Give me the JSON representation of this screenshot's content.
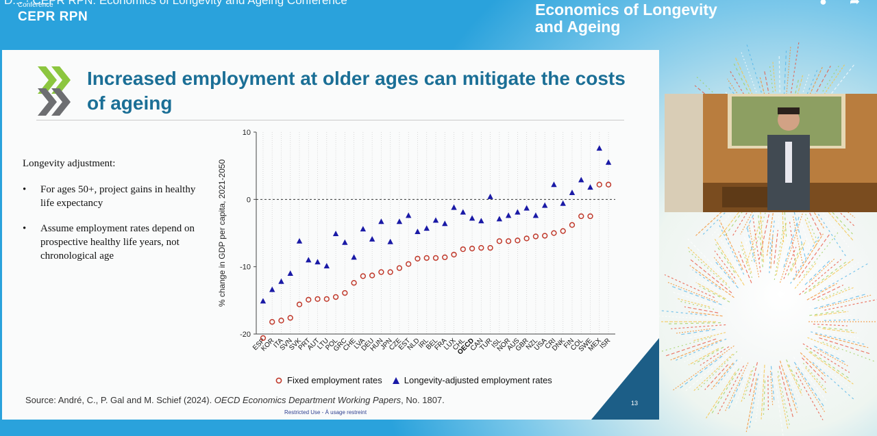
{
  "video": {
    "title": "D... · CEPR RPN: Economics of Longevity and Ageing Conference",
    "conference_small": "Conference",
    "brand": "CEPR RPN",
    "event_title_line1": "Economics of Longevity",
    "event_title_line2": "and Ageing"
  },
  "slide": {
    "title": "Increased employment at older ages can mitigate the costs of ageing",
    "notes_label": "Longevity adjustment:",
    "bullets": [
      "For ages 50+, project gains in healthy life expectancy",
      "Assume employment rates depend on prospective healthy life years, not chronological age"
    ],
    "source_prefix": "Source: André, C., P. Gal and M. Schief (2024). ",
    "source_italic": "OECD Economics Department Working Papers",
    "source_suffix": ", No. 1807.",
    "restricted": "Restricted Use - À usage restreint",
    "page_number": "13",
    "colors": {
      "title": "#1b6f96",
      "fixed": "#c0392b",
      "adjusted": "#1a1aa6",
      "corner": "#1c5e87"
    }
  },
  "chart_data": {
    "type": "scatter",
    "ylabel": "% change in GDP per capita, 2021-2050",
    "ylim": [
      -20,
      10
    ],
    "yticks": [
      10,
      0,
      -10,
      -20
    ],
    "zero_line": "dashed",
    "grid": "vertical dotted",
    "legend_position": "bottom",
    "categories": [
      "ESP",
      "KOR",
      "ITA",
      "SVN",
      "SVK",
      "PRT",
      "AUT",
      "LTU",
      "POL",
      "GRC",
      "CHE",
      "LVA",
      "DEU",
      "HUN",
      "JPN",
      "CZE",
      "EST",
      "NLD",
      "IRL",
      "BEL",
      "FRA",
      "LUX",
      "CHL",
      "OECD",
      "CAN",
      "TUR",
      "ISL",
      "NOR",
      "AUS",
      "GBR",
      "NZL",
      "USA",
      "CRI",
      "DNK",
      "FIN",
      "COL",
      "SWE",
      "MEX",
      "ISR"
    ],
    "series": [
      {
        "name": "Fixed employment rates",
        "marker": "circle-open",
        "values": [
          -20.6,
          -18.2,
          -18.0,
          -17.6,
          -15.6,
          -14.9,
          -14.8,
          -14.8,
          -14.5,
          -13.9,
          -12.4,
          -11.4,
          -11.3,
          -10.8,
          -10.8,
          -10.2,
          -9.6,
          -8.8,
          -8.7,
          -8.7,
          -8.6,
          -8.2,
          -7.4,
          -7.3,
          -7.2,
          -7.2,
          -6.2,
          -6.2,
          -6.1,
          -5.8,
          -5.5,
          -5.4,
          -5.0,
          -4.7,
          -3.8,
          -2.5,
          -2.5,
          2.2,
          2.2
        ]
      },
      {
        "name": "Longevity-adjusted employment rates",
        "marker": "triangle-filled",
        "values": [
          -15.1,
          -13.4,
          -12.2,
          -11.0,
          -6.2,
          -9.0,
          -9.3,
          -9.9,
          -5.1,
          -6.4,
          -8.6,
          -4.4,
          -5.9,
          -3.3,
          -6.3,
          -3.3,
          -2.4,
          -4.8,
          -4.3,
          -3.1,
          -3.6,
          -1.2,
          -1.9,
          -2.8,
          -3.2,
          0.4,
          -2.9,
          -2.4,
          -1.9,
          -1.3,
          -2.4,
          -0.9,
          2.2,
          -0.6,
          1.0,
          2.9,
          1.8,
          7.6,
          5.5
        ]
      }
    ]
  }
}
